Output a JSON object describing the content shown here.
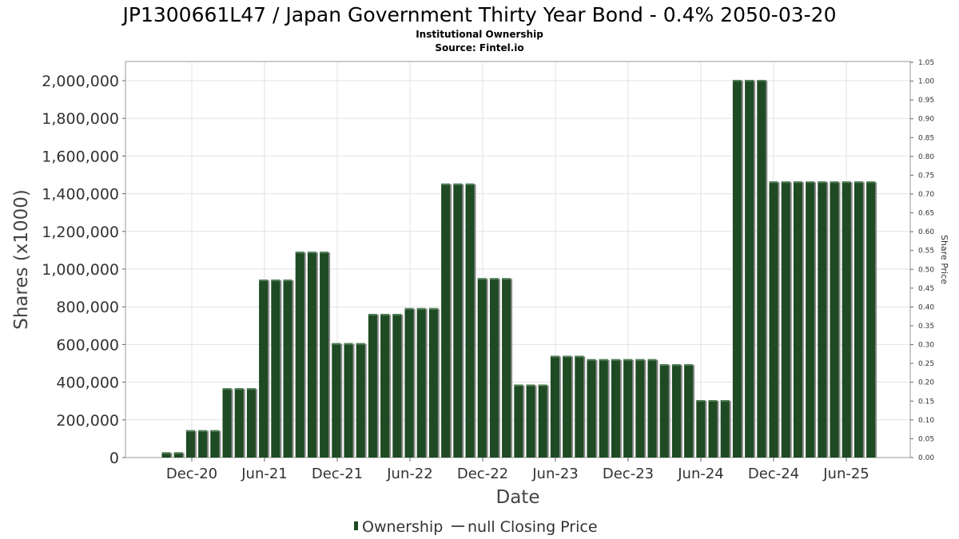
{
  "chart_data": {
    "type": "bar",
    "title": "JP1300661L47 / Japan Government Thirty Year Bond - 0.4% 2050-03-20",
    "subtitle_lines": [
      "Institutional Ownership",
      "Source: Fintel.io"
    ],
    "xlabel": "Date",
    "ylabel": "Shares (x1000)",
    "y2label": "Share Price",
    "ylim": [
      0,
      2100000
    ],
    "y2lim": [
      0,
      1.05
    ],
    "yticks": [
      {
        "v": 0,
        "label": "0"
      },
      {
        "v": 200000,
        "label": "200,000"
      },
      {
        "v": 400000,
        "label": "400,000"
      },
      {
        "v": 600000,
        "label": "600,000"
      },
      {
        "v": 800000,
        "label": "800,000"
      },
      {
        "v": 1000000,
        "label": "1,000,000"
      },
      {
        "v": 1200000,
        "label": "1,200,000"
      },
      {
        "v": 1400000,
        "label": "1,400,000"
      },
      {
        "v": 1600000,
        "label": "1,600,000"
      },
      {
        "v": 1800000,
        "label": "1,800,000"
      },
      {
        "v": 2000000,
        "label": "2,000,000"
      }
    ],
    "y2ticks": [
      "0.00",
      "0.05",
      "0.10",
      "0.15",
      "0.20",
      "0.25",
      "0.30",
      "0.35",
      "0.40",
      "0.45",
      "0.50",
      "0.55",
      "0.60",
      "0.65",
      "0.70",
      "0.75",
      "0.80",
      "0.85",
      "0.90",
      "0.95",
      "1.00",
      "1.05"
    ],
    "xticks": [
      "Dec-20",
      "Jun-21",
      "Dec-21",
      "Jun-22",
      "Dec-22",
      "Jun-23",
      "Dec-23",
      "Jun-24",
      "Dec-24",
      "Jun-25"
    ],
    "grid": true,
    "legend_position": "bottom",
    "series": [
      {
        "name": "Ownership",
        "color": "#1e4a24",
        "kind": "bar"
      },
      {
        "name": "null Closing Price",
        "color": "#555555",
        "kind": "line"
      }
    ],
    "values": [
      28000,
      28000,
      145000,
      145000,
      145000,
      368000,
      368000,
      368000,
      944000,
      944000,
      944000,
      1092000,
      1092000,
      1092000,
      607000,
      607000,
      607000,
      762000,
      762000,
      762000,
      793000,
      793000,
      793000,
      1454000,
      1454000,
      1454000,
      952000,
      952000,
      952000,
      387000,
      387000,
      387000,
      540000,
      540000,
      540000,
      522000,
      522000,
      522000,
      522000,
      522000,
      522000,
      495000,
      495000,
      495000,
      305000,
      305000,
      305000,
      2004000,
      2004000,
      2004000,
      1465000,
      1465000,
      1465000,
      1465000,
      1465000,
      1465000,
      1465000,
      1465000,
      1465000
    ]
  }
}
